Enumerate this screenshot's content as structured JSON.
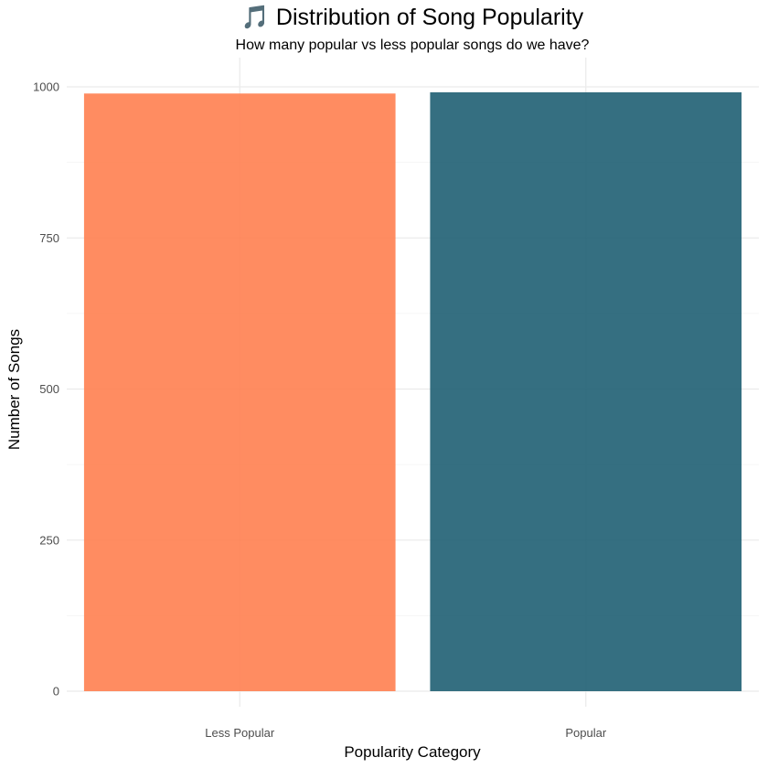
{
  "chart_data": {
    "type": "bar",
    "title": "🎵 Distribution of Song Popularity",
    "subtitle": "How many popular vs less popular songs do we have?",
    "xlabel": "Popularity Category",
    "ylabel": "Number of Songs",
    "categories": [
      "Less Popular",
      "Popular"
    ],
    "values": [
      989,
      991
    ],
    "colors": [
      "#FF7F50",
      "#1F5F73"
    ],
    "ylim": [
      0,
      1000
    ],
    "yticks": [
      0,
      250,
      500,
      750,
      1000
    ],
    "ytick_labels": [
      "0",
      "250",
      "500",
      "750",
      "1000"
    ],
    "grid": true,
    "legend": "none"
  }
}
